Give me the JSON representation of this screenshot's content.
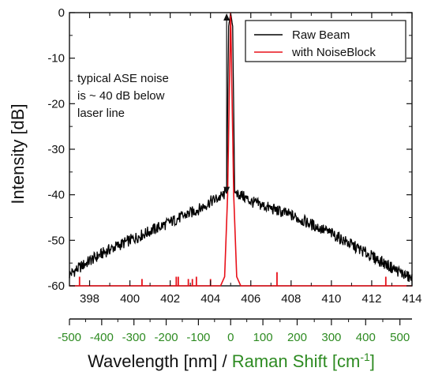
{
  "chart_data": {
    "type": "line",
    "title": "",
    "ylabel": "Intensity [dB]",
    "xlabel_main": "Wavelength [nm]",
    "xlabel_sep": " / ",
    "xlabel_secondary": "Raman Shift [cm",
    "xlabel_secondary_exp": "-1",
    "xlabel_secondary_close": "]",
    "xlim": [
      397,
      414
    ],
    "ylim": [
      -60,
      0
    ],
    "x_ticks": [
      "398",
      "400",
      "402",
      "404",
      "406",
      "408",
      "410",
      "412",
      "414"
    ],
    "y_ticks": [
      "0",
      "-10",
      "-20",
      "-30",
      "-40",
      "-50",
      "-60"
    ],
    "raman_ticks": [
      {
        "label": "-500",
        "wl": 397.0
      },
      {
        "label": "-400",
        "wl": 398.6
      },
      {
        "label": "-300",
        "wl": 400.2
      },
      {
        "label": "-200",
        "wl": 401.8
      },
      {
        "label": "-100",
        "wl": 403.4
      },
      {
        "label": "0",
        "wl": 405.0
      },
      {
        "label": "100",
        "wl": 406.6
      },
      {
        "label": "200",
        "wl": 408.3
      },
      {
        "label": "300",
        "wl": 410.0
      },
      {
        "label": "400",
        "wl": 411.7
      },
      {
        "label": "500",
        "wl": 413.4
      }
    ],
    "series": [
      {
        "name": "Raw Beam",
        "color": "#000000",
        "x": [
          397.0,
          398.0,
          399.0,
          400.0,
          401.0,
          402.0,
          403.0,
          403.5,
          404.0,
          404.5,
          404.8,
          404.9,
          405.0,
          405.1,
          405.2,
          405.5,
          406.0,
          407.0,
          408.0,
          409.0,
          410.0,
          411.0,
          412.0,
          413.0,
          414.0
        ],
        "y": [
          -57.5,
          -54.5,
          -52.0,
          -50.0,
          -48.0,
          -46.0,
          -44.0,
          -43.0,
          -41.5,
          -40.5,
          -39.5,
          -3.0,
          0.0,
          -3.0,
          -39.5,
          -40.0,
          -41.5,
          -43.0,
          -44.5,
          -46.5,
          -48.5,
          -51.0,
          -53.5,
          -56.0,
          -58.5
        ]
      },
      {
        "name": "with NoiseBlock",
        "color": "#e8111a",
        "x": [
          397.0,
          404.5,
          404.7,
          404.85,
          405.0,
          405.15,
          405.3,
          405.5,
          414.0
        ],
        "y": [
          -60.0,
          -60.0,
          -58.0,
          -40.0,
          0.0,
          -40.0,
          -58.0,
          -60.0,
          -60.0
        ],
        "spikes": [
          {
            "x": 397.5,
            "y": -58.0
          },
          {
            "x": 400.6,
            "y": -58.5
          },
          {
            "x": 402.3,
            "y": -58.0
          },
          {
            "x": 402.4,
            "y": -58.0
          },
          {
            "x": 402.9,
            "y": -58.5
          },
          {
            "x": 403.1,
            "y": -58.5
          },
          {
            "x": 403.3,
            "y": -58.0
          },
          {
            "x": 404.0,
            "y": -58.5
          },
          {
            "x": 407.3,
            "y": -57.0
          },
          {
            "x": 412.7,
            "y": -58.0
          }
        ]
      }
    ],
    "legend": {
      "position": "top-right",
      "entries": [
        "Raw Beam",
        "with NoiseBlock"
      ]
    },
    "annotation": {
      "lines": [
        "typical ASE noise",
        "is ~ 40 dB below",
        "laser line"
      ],
      "arrow_x": 404.8,
      "arrow_from_y": 0,
      "arrow_to_y": -40
    },
    "colors": {
      "raman_axis": "#2e8b22",
      "raw": "#000000",
      "noiseblock": "#e8111a"
    },
    "grid": false
  }
}
